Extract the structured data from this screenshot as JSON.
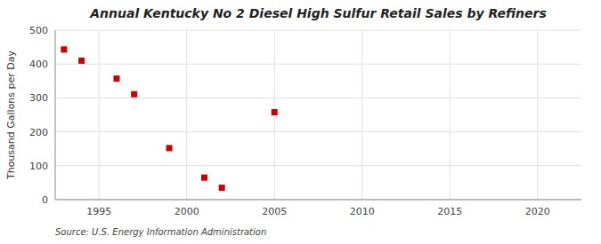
{
  "chart_data": {
    "type": "scatter",
    "title": "Annual Kentucky No 2 Diesel High Sulfur Retail Sales by Refiners",
    "ylabel": "Thousand Gallons per Day",
    "source": "Source: U.S. Energy Information Administration",
    "x": [
      1993,
      1994,
      1996,
      1997,
      1999,
      2001,
      2002,
      2005
    ],
    "values": [
      443,
      410,
      357,
      311,
      152,
      65,
      35,
      258
    ],
    "color": "#cc0000",
    "marker": "square",
    "xlim": [
      1992.5,
      2022.5
    ],
    "ylim": [
      0,
      500
    ],
    "xticks": [
      1995,
      2000,
      2005,
      2010,
      2015,
      2020
    ],
    "yticks": [
      0,
      100,
      200,
      300,
      400,
      500
    ],
    "grid": true
  }
}
